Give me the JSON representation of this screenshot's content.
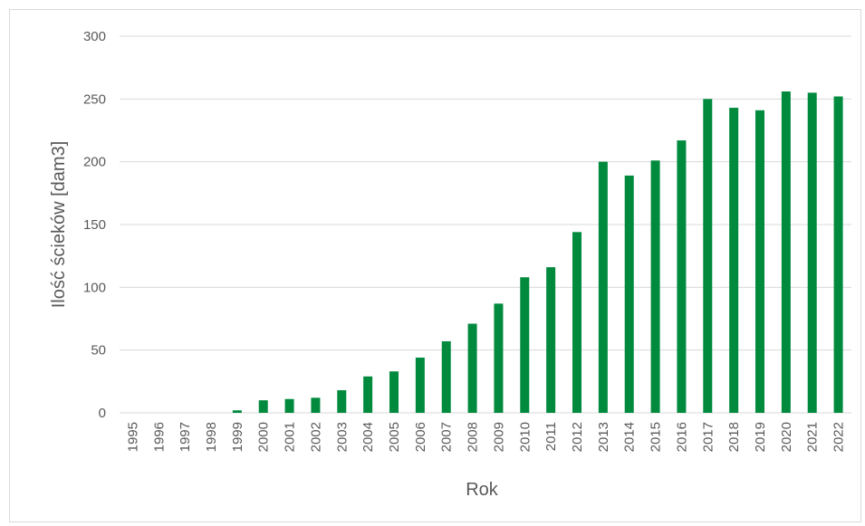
{
  "chart_data": {
    "type": "bar",
    "title": "",
    "xlabel": "Rok",
    "ylabel": "Ilość ścieków [dam3]",
    "ylim": [
      0,
      300
    ],
    "yticks": [
      0,
      50,
      100,
      150,
      200,
      250,
      300
    ],
    "grid": true,
    "legend": "none",
    "color": "#008A3E",
    "categories": [
      "1995",
      "1996",
      "1997",
      "1998",
      "1999",
      "2000",
      "2001",
      "2002",
      "2003",
      "2004",
      "2005",
      "2006",
      "2007",
      "2008",
      "2009",
      "2010",
      "2011",
      "2012",
      "2013",
      "2014",
      "2015",
      "2016",
      "2017",
      "2018",
      "2019",
      "2020",
      "2021",
      "2022"
    ],
    "values": [
      0,
      0,
      0,
      0,
      2,
      10,
      11,
      12,
      18,
      29,
      33,
      44,
      57,
      71,
      87,
      108,
      116,
      144,
      200,
      189,
      201,
      217,
      250,
      243,
      241,
      256,
      255,
      252
    ]
  }
}
